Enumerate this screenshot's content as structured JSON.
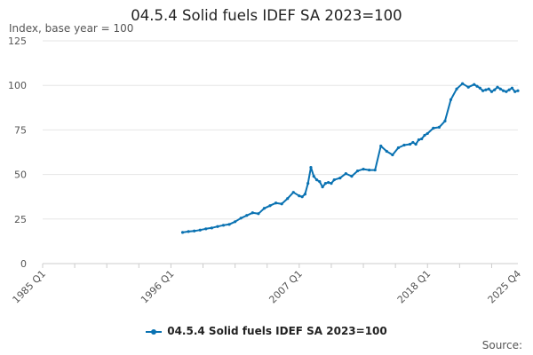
{
  "chart_data": {
    "type": "line",
    "title": "04.5.4 Solid fuels IDEF SA 2023=100",
    "ylabel": "Index, base year = 100",
    "source_label": "Source:",
    "ylim": [
      0,
      125
    ],
    "yticks": [
      0,
      25,
      50,
      75,
      100,
      125
    ],
    "xlim": [
      1985.0,
      2025.75
    ],
    "xticks": [
      {
        "x": 1985.0,
        "label": "1985 Q1"
      },
      {
        "x": 1996.0,
        "label": "1996 Q1"
      },
      {
        "x": 2007.0,
        "label": "2007 Q1"
      },
      {
        "x": 2018.0,
        "label": "2018 Q1"
      },
      {
        "x": 2025.75,
        "label": "2025 Q4"
      }
    ],
    "minor_tick_step": 2.75,
    "grid": "horizontal",
    "legend_position": "bottom",
    "series": [
      {
        "name": "04.5.4 Solid fuels IDEF SA 2023=100",
        "color": "#0a72b2",
        "x": [
          1997.0,
          1997.5,
          1998.0,
          1998.5,
          1999.0,
          1999.5,
          2000.0,
          2000.5,
          2001.0,
          2001.5,
          2002.0,
          2002.5,
          2003.0,
          2003.5,
          2004.0,
          2004.5,
          2005.0,
          2005.5,
          2006.0,
          2006.5,
          2007.0,
          2007.25,
          2007.5,
          2007.75,
          2008.0,
          2008.25,
          2008.5,
          2008.75,
          2009.0,
          2009.25,
          2009.5,
          2009.75,
          2010.0,
          2010.5,
          2011.0,
          2011.5,
          2012.0,
          2012.5,
          2013.0,
          2013.5,
          2014.0,
          2014.5,
          2015.0,
          2015.5,
          2016.0,
          2016.5,
          2016.75,
          2017.0,
          2017.25,
          2017.5,
          2017.75,
          2018.0,
          2018.5,
          2019.0,
          2019.5,
          2020.0,
          2020.5,
          2021.0,
          2021.5,
          2022.0,
          2022.25,
          2022.5,
          2022.75,
          2023.0,
          2023.25,
          2023.5,
          2023.75,
          2024.0,
          2024.25,
          2024.5,
          2024.75,
          2025.0,
          2025.25,
          2025.5,
          2025.75
        ],
        "values": [
          17.5,
          18,
          18.3,
          18.8,
          19.5,
          20,
          20.8,
          21.5,
          22,
          23.5,
          25.5,
          27,
          28.5,
          28,
          31,
          32.5,
          34,
          33.5,
          36.5,
          40,
          38,
          37.5,
          39,
          45,
          54,
          49,
          47,
          46,
          43,
          45,
          45.5,
          45,
          47,
          48,
          50.5,
          49,
          52,
          53,
          52.5,
          52.5,
          66,
          63,
          61,
          65,
          66.5,
          67,
          68,
          67,
          69.5,
          70,
          72,
          73,
          76,
          76.5,
          80,
          92,
          98,
          101,
          99,
          100.5,
          99.5,
          98.5,
          97,
          97.5,
          98,
          96.5,
          97.5,
          99,
          98,
          97,
          96.5,
          97.5,
          98.5,
          96.5,
          97
        ]
      }
    ]
  }
}
